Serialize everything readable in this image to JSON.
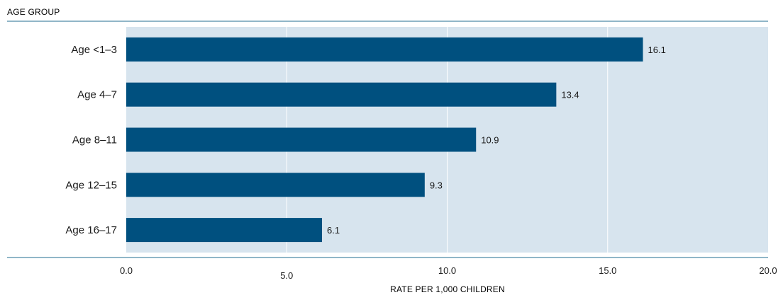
{
  "chart_data": {
    "type": "bar",
    "orientation": "horizontal",
    "title": "",
    "ylabel": "AGE GROUP",
    "xlabel": "RATE PER 1,000 CHILDREN",
    "categories": [
      "Age <1–3",
      "Age 4–7",
      "Age 8–11",
      "Age 12–15",
      "Age 16–17"
    ],
    "values": [
      16.1,
      13.4,
      10.9,
      9.3,
      6.1
    ],
    "data_labels": [
      "16.1",
      "13.4",
      "10.9",
      "9.3",
      "6.1"
    ],
    "xlim": [
      0,
      20
    ],
    "x_ticks": [
      0,
      5,
      10,
      15,
      20
    ],
    "x_tick_labels": [
      "0.0",
      "5.0",
      "10.0",
      "15.0",
      "20.0"
    ],
    "grid": true,
    "legend": "none",
    "colors": {
      "bar": "#00507f",
      "plot_background": "#d7e4ee",
      "axis_rule": "#4e8aa8",
      "grid": "#ffffff",
      "text": "#1a1a1a"
    }
  }
}
